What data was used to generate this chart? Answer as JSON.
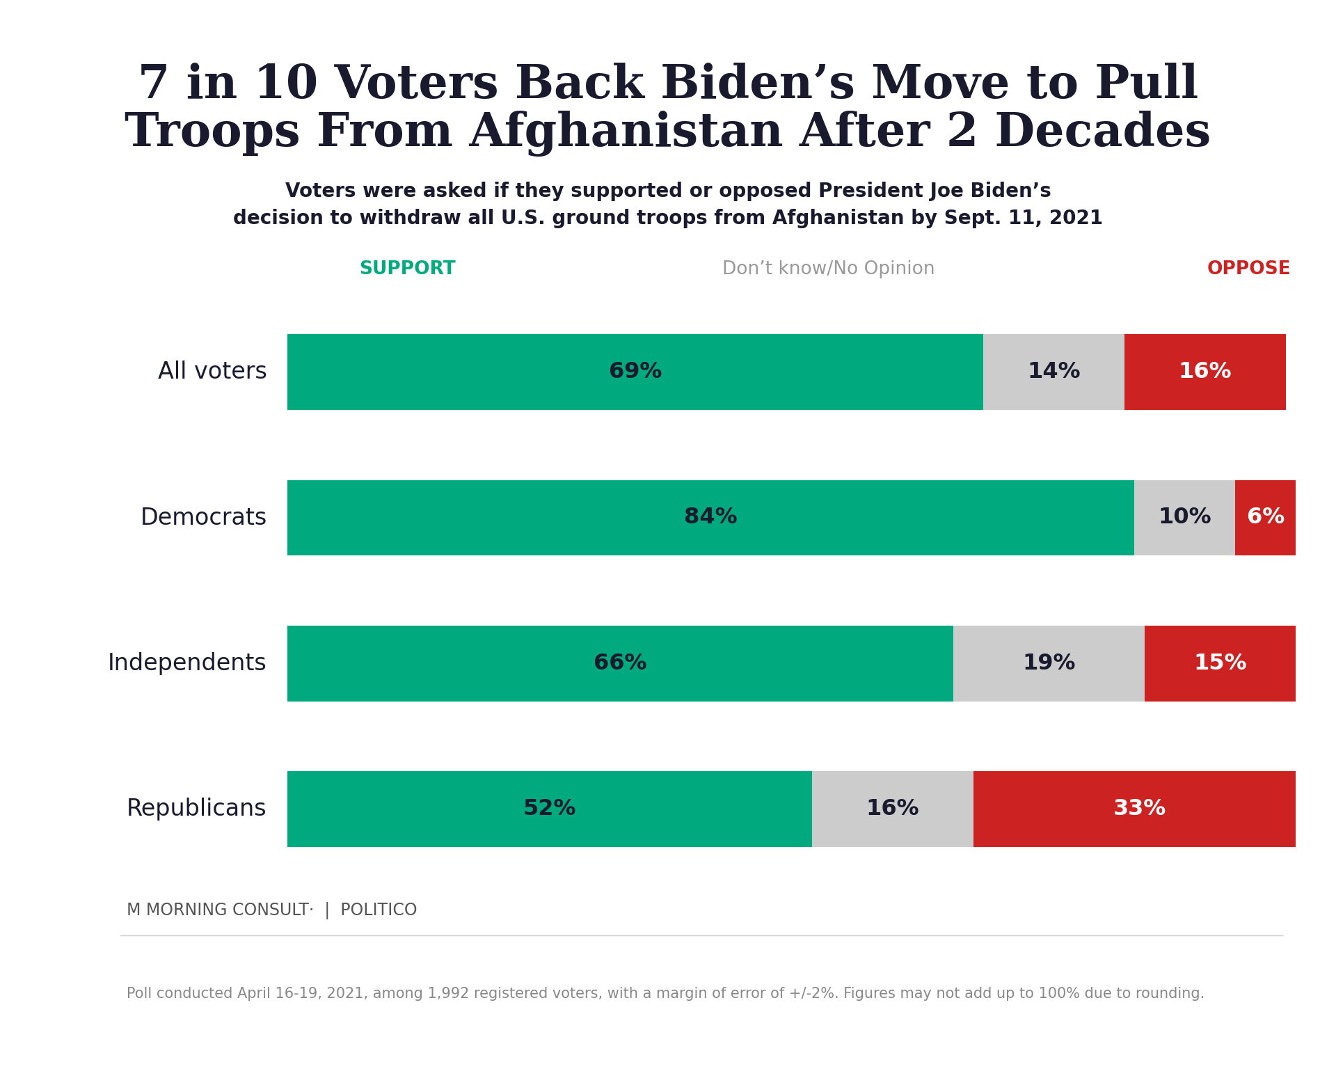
{
  "title_line1": "7 in 10 Voters Back Biden’s Move to Pull",
  "title_line2": "Troops From Afghanistan After 2 Decades",
  "subtitle": "Voters were asked if they supported or opposed President Joe Biden’s\ndecision to withdraw all U.S. ground troops from Afghanistan by Sept. 11, 2021",
  "categories": [
    "All voters",
    "Democrats",
    "Independents",
    "Republicans"
  ],
  "support": [
    69,
    84,
    66,
    52
  ],
  "dontknow": [
    14,
    10,
    19,
    16
  ],
  "oppose": [
    16,
    6,
    15,
    33
  ],
  "support_color": "#00AA7E",
  "dontknow_color": "#CCCCCC",
  "oppose_color": "#CC2222",
  "support_label": "SUPPORT",
  "dontknow_label": "Don’t know/No Opinion",
  "oppose_label": "OPPOSE",
  "support_label_color": "#00AA7E",
  "dontknow_label_color": "#999999",
  "oppose_label_color": "#CC2222",
  "bar_text_color": "#1a1a2e",
  "oppose_text_color": "#FFFFFF",
  "bg_color": "#FFFFFF",
  "top_bar_color": "#35C8C8",
  "footer_text": "Poll conducted April 16-19, 2021, among 1,992 registered voters, with a margin of error of +/-2%. Figures may not add up to 100% due to rounding.",
  "title_fontsize": 48,
  "subtitle_fontsize": 20,
  "bar_label_fontsize": 23,
  "category_fontsize": 24,
  "legend_fontsize": 19,
  "footer_fontsize": 15,
  "bar_height": 0.52,
  "logo_text": "MORNING CONSULT®  |  POLITICO"
}
